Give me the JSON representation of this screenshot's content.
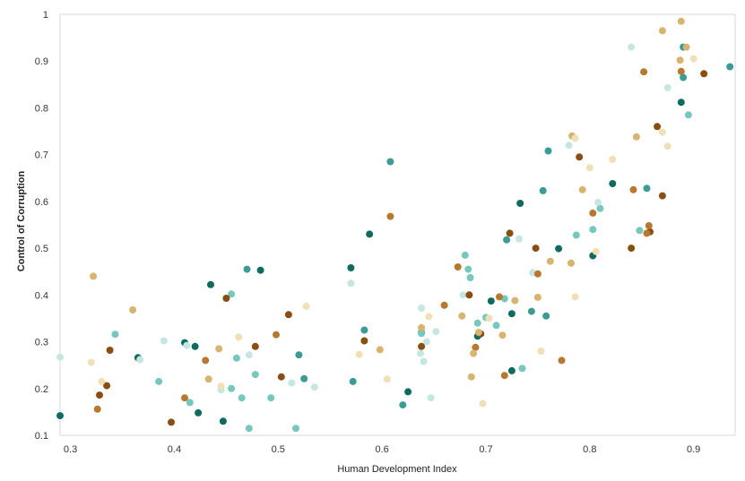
{
  "chart_data": {
    "type": "scatter",
    "title": "",
    "xlabel": "Human Development Index",
    "ylabel": "Control of Corruption",
    "xlim": [
      0.29,
      0.94
    ],
    "ylim": [
      0.1,
      1.0
    ],
    "grid": false,
    "legend": "none",
    "xticks": [
      "0.3",
      "0.4",
      "0.5",
      "0.6",
      "0.7",
      "0.8",
      "0.9"
    ],
    "yticks": [
      "0.1",
      "0.2",
      "0.3",
      "0.4",
      "0.5",
      "0.6",
      "0.7",
      "0.8",
      "0.9",
      "1"
    ],
    "palette": {
      "dark_teal": "#0f6b5f",
      "teal": "#3a9c94",
      "light_teal": "#76c8bd",
      "pale_teal": "#c6e7e1",
      "dark_brown": "#8a4e12",
      "brown": "#b8782f",
      "tan": "#d9b370",
      "wheat": "#f1dfb6"
    },
    "series": [
      {
        "color_key": "dark_teal",
        "points": [
          [
            0.29,
            0.142
          ],
          [
            0.365,
            0.266
          ],
          [
            0.41,
            0.298
          ],
          [
            0.42,
            0.29
          ],
          [
            0.423,
            0.148
          ],
          [
            0.435,
            0.422
          ],
          [
            0.447,
            0.13
          ],
          [
            0.483,
            0.453
          ],
          [
            0.57,
            0.458
          ],
          [
            0.588,
            0.53
          ],
          [
            0.625,
            0.193
          ],
          [
            0.692,
            0.312
          ],
          [
            0.705,
            0.387
          ],
          [
            0.725,
            0.36
          ],
          [
            0.725,
            0.238
          ],
          [
            0.733,
            0.596
          ],
          [
            0.77,
            0.499
          ],
          [
            0.803,
            0.484
          ],
          [
            0.822,
            0.638
          ],
          [
            0.888,
            0.812
          ]
        ]
      },
      {
        "color_key": "teal",
        "points": [
          [
            0.47,
            0.455
          ],
          [
            0.52,
            0.272
          ],
          [
            0.525,
            0.221
          ],
          [
            0.572,
            0.215
          ],
          [
            0.583,
            0.325
          ],
          [
            0.608,
            0.685
          ],
          [
            0.62,
            0.165
          ],
          [
            0.638,
            0.32
          ],
          [
            0.72,
            0.518
          ],
          [
            0.744,
            0.365
          ],
          [
            0.755,
            0.623
          ],
          [
            0.758,
            0.355
          ],
          [
            0.76,
            0.708
          ],
          [
            0.855,
            0.628
          ],
          [
            0.89,
            0.865
          ],
          [
            0.89,
            0.93
          ],
          [
            0.935,
            0.888
          ]
        ]
      },
      {
        "color_key": "light_teal",
        "points": [
          [
            0.343,
            0.316
          ],
          [
            0.385,
            0.215
          ],
          [
            0.415,
            0.17
          ],
          [
            0.455,
            0.402
          ],
          [
            0.455,
            0.2
          ],
          [
            0.46,
            0.265
          ],
          [
            0.465,
            0.18
          ],
          [
            0.472,
            0.115
          ],
          [
            0.478,
            0.23
          ],
          [
            0.493,
            0.18
          ],
          [
            0.517,
            0.115
          ],
          [
            0.638,
            0.318
          ],
          [
            0.68,
            0.485
          ],
          [
            0.683,
            0.455
          ],
          [
            0.685,
            0.437
          ],
          [
            0.692,
            0.34
          ],
          [
            0.7,
            0.352
          ],
          [
            0.71,
            0.335
          ],
          [
            0.718,
            0.392
          ],
          [
            0.735,
            0.243
          ],
          [
            0.787,
            0.528
          ],
          [
            0.803,
            0.54
          ],
          [
            0.81,
            0.585
          ],
          [
            0.848,
            0.538
          ],
          [
            0.895,
            0.785
          ]
        ]
      },
      {
        "color_key": "pale_teal",
        "points": [
          [
            0.29,
            0.267
          ],
          [
            0.367,
            0.262
          ],
          [
            0.39,
            0.302
          ],
          [
            0.412,
            0.292
          ],
          [
            0.445,
            0.197
          ],
          [
            0.472,
            0.272
          ],
          [
            0.513,
            0.212
          ],
          [
            0.535,
            0.203
          ],
          [
            0.57,
            0.425
          ],
          [
            0.637,
            0.275
          ],
          [
            0.638,
            0.372
          ],
          [
            0.64,
            0.258
          ],
          [
            0.643,
            0.3
          ],
          [
            0.647,
            0.18
          ],
          [
            0.652,
            0.322
          ],
          [
            0.678,
            0.4
          ],
          [
            0.732,
            0.52
          ],
          [
            0.745,
            0.448
          ],
          [
            0.78,
            0.72
          ],
          [
            0.808,
            0.598
          ],
          [
            0.84,
            0.93
          ],
          [
            0.875,
            0.843
          ]
        ]
      },
      {
        "color_key": "dark_brown",
        "points": [
          [
            0.328,
            0.186
          ],
          [
            0.335,
            0.206
          ],
          [
            0.338,
            0.282
          ],
          [
            0.397,
            0.128
          ],
          [
            0.45,
            0.393
          ],
          [
            0.478,
            0.29
          ],
          [
            0.503,
            0.225
          ],
          [
            0.51,
            0.358
          ],
          [
            0.583,
            0.302
          ],
          [
            0.638,
            0.29
          ],
          [
            0.684,
            0.4
          ],
          [
            0.695,
            0.317
          ],
          [
            0.723,
            0.532
          ],
          [
            0.748,
            0.5
          ],
          [
            0.79,
            0.695
          ],
          [
            0.84,
            0.5
          ],
          [
            0.858,
            0.535
          ],
          [
            0.865,
            0.76
          ],
          [
            0.87,
            0.612
          ],
          [
            0.91,
            0.873
          ]
        ]
      },
      {
        "color_key": "brown",
        "points": [
          [
            0.326,
            0.156
          ],
          [
            0.41,
            0.18
          ],
          [
            0.43,
            0.26
          ],
          [
            0.498,
            0.315
          ],
          [
            0.608,
            0.568
          ],
          [
            0.66,
            0.378
          ],
          [
            0.673,
            0.46
          ],
          [
            0.69,
            0.288
          ],
          [
            0.713,
            0.396
          ],
          [
            0.718,
            0.228
          ],
          [
            0.75,
            0.445
          ],
          [
            0.773,
            0.26
          ],
          [
            0.803,
            0.575
          ],
          [
            0.842,
            0.625
          ],
          [
            0.852,
            0.877
          ],
          [
            0.855,
            0.532
          ],
          [
            0.857,
            0.548
          ],
          [
            0.888,
            0.878
          ]
        ]
      },
      {
        "color_key": "tan",
        "points": [
          [
            0.322,
            0.44
          ],
          [
            0.36,
            0.368
          ],
          [
            0.433,
            0.22
          ],
          [
            0.443,
            0.285
          ],
          [
            0.598,
            0.283
          ],
          [
            0.638,
            0.33
          ],
          [
            0.677,
            0.355
          ],
          [
            0.686,
            0.225
          ],
          [
            0.688,
            0.275
          ],
          [
            0.693,
            0.32
          ],
          [
            0.716,
            0.314
          ],
          [
            0.728,
            0.388
          ],
          [
            0.75,
            0.395
          ],
          [
            0.762,
            0.472
          ],
          [
            0.782,
            0.468
          ],
          [
            0.783,
            0.74
          ],
          [
            0.793,
            0.625
          ],
          [
            0.845,
            0.738
          ],
          [
            0.87,
            0.965
          ],
          [
            0.887,
            0.902
          ],
          [
            0.888,
            0.985
          ],
          [
            0.893,
            0.93
          ]
        ]
      },
      {
        "color_key": "wheat",
        "points": [
          [
            0.32,
            0.256
          ],
          [
            0.33,
            0.215
          ],
          [
            0.445,
            0.205
          ],
          [
            0.462,
            0.31
          ],
          [
            0.527,
            0.376
          ],
          [
            0.578,
            0.273
          ],
          [
            0.605,
            0.22
          ],
          [
            0.645,
            0.354
          ],
          [
            0.697,
            0.168
          ],
          [
            0.703,
            0.35
          ],
          [
            0.753,
            0.28
          ],
          [
            0.786,
            0.396
          ],
          [
            0.786,
            0.735
          ],
          [
            0.8,
            0.672
          ],
          [
            0.806,
            0.493
          ],
          [
            0.822,
            0.69
          ],
          [
            0.87,
            0.748
          ],
          [
            0.875,
            0.718
          ],
          [
            0.9,
            0.905
          ]
        ]
      }
    ]
  }
}
